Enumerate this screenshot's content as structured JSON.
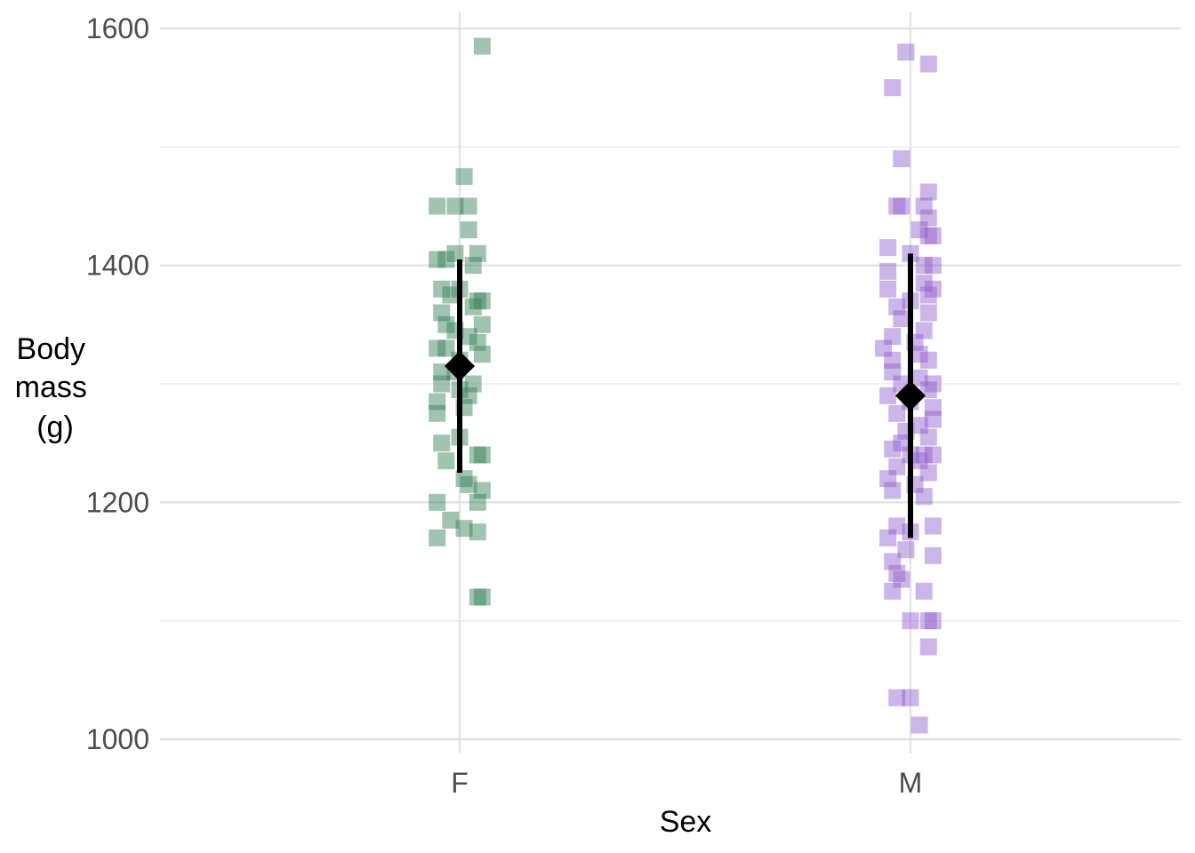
{
  "chart_data": {
    "type": "scatter",
    "title": "",
    "xlabel": "Sex",
    "ylabel_lines": [
      "Body",
      "mass",
      "(g)"
    ],
    "categories": [
      "F",
      "M"
    ],
    "ylim": [
      985,
      1610
    ],
    "y_ticks": [
      1000,
      1200,
      1400,
      1600
    ],
    "y_minor_ticks": [
      1100,
      1300,
      1500
    ],
    "grid": true,
    "legend": "none",
    "series": [
      {
        "category": "F",
        "color": "#2e7d52",
        "values": [
          1585,
          1475,
          1450,
          1450,
          1450,
          1430,
          1410,
          1410,
          1405,
          1405,
          1400,
          1380,
          1380,
          1375,
          1370,
          1370,
          1365,
          1360,
          1350,
          1350,
          1345,
          1340,
          1335,
          1330,
          1330,
          1325,
          1320,
          1310,
          1310,
          1300,
          1300,
          1295,
          1290,
          1285,
          1280,
          1275,
          1255,
          1250,
          1240,
          1240,
          1235,
          1220,
          1215,
          1210,
          1200,
          1200,
          1185,
          1178,
          1175,
          1170,
          1120,
          1120
        ],
        "jitter": [
          0.05,
          0.01,
          -0.05,
          -0.01,
          0.02,
          0.02,
          0.04,
          -0.01,
          -0.05,
          -0.03,
          0.03,
          -0.04,
          0.0,
          -0.02,
          0.04,
          0.05,
          0.03,
          -0.04,
          0.05,
          -0.03,
          -0.01,
          0.02,
          0.04,
          -0.05,
          -0.03,
          0.05,
          0.0,
          -0.04,
          -0.01,
          -0.04,
          0.03,
          0.0,
          0.02,
          -0.05,
          0.01,
          -0.05,
          0.0,
          -0.04,
          0.04,
          0.05,
          -0.03,
          0.01,
          0.02,
          0.05,
          -0.05,
          0.04,
          -0.02,
          0.01,
          0.04,
          -0.05,
          0.04,
          0.05
        ],
        "mean": 1315,
        "interval": [
          1225,
          1405
        ]
      },
      {
        "category": "M",
        "color": "#8e5ccc",
        "values": [
          1580,
          1570,
          1550,
          1490,
          1462,
          1450,
          1450,
          1450,
          1440,
          1430,
          1425,
          1425,
          1415,
          1410,
          1400,
          1400,
          1395,
          1385,
          1380,
          1380,
          1375,
          1370,
          1365,
          1360,
          1355,
          1345,
          1340,
          1335,
          1330,
          1325,
          1320,
          1320,
          1310,
          1305,
          1300,
          1300,
          1295,
          1290,
          1285,
          1280,
          1275,
          1270,
          1265,
          1260,
          1255,
          1250,
          1245,
          1240,
          1240,
          1240,
          1235,
          1230,
          1225,
          1220,
          1215,
          1210,
          1205,
          1180,
          1180,
          1175,
          1170,
          1160,
          1155,
          1150,
          1140,
          1135,
          1125,
          1125,
          1100,
          1100,
          1100,
          1078,
          1035,
          1035,
          1012
        ],
        "jitter": [
          -0.01,
          0.04,
          -0.04,
          -0.02,
          0.04,
          -0.02,
          -0.03,
          0.03,
          0.04,
          0.02,
          0.04,
          0.05,
          -0.05,
          0.0,
          0.05,
          0.03,
          -0.05,
          0.03,
          -0.05,
          0.05,
          0.04,
          0.0,
          -0.03,
          0.04,
          -0.02,
          0.03,
          -0.04,
          0.01,
          -0.06,
          0.02,
          -0.04,
          0.04,
          -0.04,
          0.02,
          0.05,
          -0.02,
          0.04,
          -0.05,
          0.0,
          0.05,
          -0.03,
          0.05,
          0.02,
          -0.01,
          0.04,
          -0.02,
          -0.04,
          0.0,
          0.03,
          0.05,
          0.02,
          -0.03,
          0.04,
          -0.05,
          0.01,
          -0.04,
          0.03,
          -0.03,
          0.05,
          0.0,
          -0.05,
          -0.01,
          0.05,
          -0.04,
          -0.03,
          -0.02,
          -0.04,
          0.03,
          0.0,
          0.04,
          0.05,
          0.04,
          -0.03,
          -0.0,
          0.02
        ],
        "mean": 1290,
        "interval": [
          1170,
          1410
        ]
      }
    ]
  }
}
